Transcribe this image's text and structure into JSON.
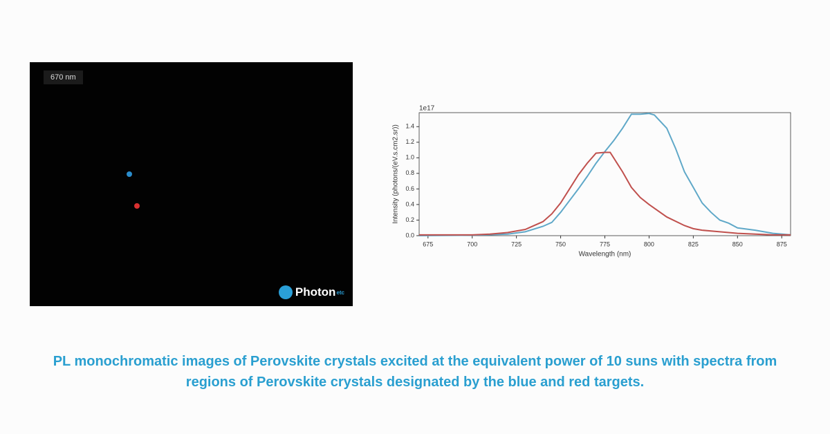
{
  "image": {
    "label": "670 nm",
    "logo": "Photon",
    "logo_suffix": "etc"
  },
  "chart_data": {
    "type": "line",
    "x_label": "Wavelength (nm)",
    "y_label": "Intensity (photons/(eV.s.cm2.sr))",
    "offset_label": "1e17",
    "xlim": [
      670,
      880
    ],
    "xticks": [
      675,
      700,
      725,
      750,
      775,
      800,
      825,
      850,
      875
    ],
    "ylim": [
      0,
      1.58
    ],
    "yticks": [
      {
        "value": 0,
        "label": "0.0"
      },
      {
        "value": 0.2,
        "label": "0.2"
      },
      {
        "value": 0.4,
        "label": "0.4"
      },
      {
        "value": 0.6,
        "label": "0.6"
      },
      {
        "value": 0.8,
        "label": "0.8"
      },
      {
        "value": 1,
        "label": "1.0"
      },
      {
        "value": 1.2,
        "label": "1.2"
      },
      {
        "value": 1.4,
        "label": "1.4"
      }
    ],
    "series": [
      {
        "color": "#5fa8c8",
        "x": [
          670,
          700,
          720,
          730,
          740,
          745,
          750,
          755,
          760,
          765,
          770,
          775,
          780,
          785,
          790,
          795,
          800,
          803,
          810,
          815,
          820,
          825,
          830,
          835,
          840,
          845,
          850,
          860,
          870,
          880
        ],
        "values": [
          0.0,
          0.005,
          0.02,
          0.05,
          0.12,
          0.17,
          0.3,
          0.45,
          0.6,
          0.76,
          0.93,
          1.08,
          1.22,
          1.38,
          1.56,
          1.56,
          1.57,
          1.55,
          1.38,
          1.12,
          0.82,
          0.62,
          0.42,
          0.3,
          0.2,
          0.16,
          0.1,
          0.07,
          0.03,
          0.01
        ]
      },
      {
        "color": "#c0504d",
        "x": [
          670,
          700,
          710,
          720,
          730,
          740,
          745,
          750,
          755,
          760,
          765,
          770,
          775,
          778,
          785,
          790,
          795,
          800,
          810,
          820,
          825,
          830,
          840,
          850,
          860,
          870,
          880
        ],
        "values": [
          0.01,
          0.01,
          0.02,
          0.04,
          0.08,
          0.18,
          0.28,
          0.42,
          0.6,
          0.78,
          0.93,
          1.06,
          1.07,
          1.07,
          0.82,
          0.62,
          0.49,
          0.4,
          0.24,
          0.13,
          0.09,
          0.07,
          0.05,
          0.03,
          0.02,
          0.01,
          0.01
        ]
      }
    ]
  },
  "caption": "PL monochromatic images of Perovskite crystals excited at the equivalent power of 10 suns with spectra from regions of Perovskite crystals designated by the blue and red targets."
}
